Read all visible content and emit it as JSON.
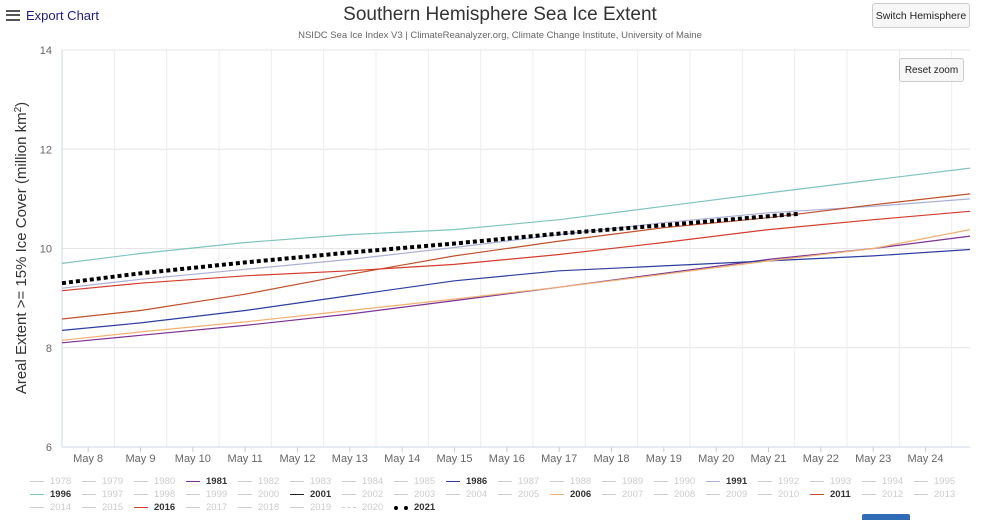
{
  "header": {
    "export_label": "Export Chart",
    "title": "Southern Hemisphere Sea Ice Extent",
    "subtitle": "NSIDC Sea Ice Index V3 | ClimateReanalyzer.org, Climate Change Institute, University of Maine",
    "switch_label": "Switch Hemisphere",
    "reset_zoom_label": "Reset zoom"
  },
  "chart_data": {
    "type": "line",
    "title": "Southern Hemisphere Sea Ice Extent",
    "subtitle": "NSIDC Sea Ice Index V3 | ClimateReanalyzer.org, Climate Change Institute, University of Maine",
    "ylabel": "Areal Extent >= 15% Ice Cover (million km²)",
    "ylabel_parts": {
      "main": "Areal Extent >= 15% Ice Cover (million km",
      "sup": "2",
      "end": ")"
    },
    "xlabel": "",
    "ylim": [
      6,
      14
    ],
    "yticks": [
      6,
      8,
      10,
      12,
      14
    ],
    "xlim": [
      7.5,
      24.85
    ],
    "x_ticks": [
      8,
      9,
      10,
      11,
      12,
      13,
      14,
      15,
      16,
      17,
      18,
      19,
      20,
      21,
      22,
      23,
      24
    ],
    "x_tick_labels": [
      "May 8",
      "May 9",
      "May 10",
      "May 11",
      "May 12",
      "May 13",
      "May 14",
      "May 15",
      "May 16",
      "May 17",
      "May 18",
      "May 19",
      "May 20",
      "May 21",
      "May 22",
      "May 23",
      "May 24"
    ],
    "grid": true,
    "legend_position": "bottom",
    "series": [
      {
        "name": "1981",
        "color": "#7b3294",
        "style": "solid",
        "x": [
          7.5,
          9,
          11,
          13,
          15,
          17,
          19,
          21,
          23,
          24.85
        ],
        "y": [
          8.1,
          8.25,
          8.45,
          8.68,
          8.95,
          9.22,
          9.5,
          9.78,
          10.0,
          10.25
        ]
      },
      {
        "name": "1986",
        "color": "#2c3e9e",
        "style": "solid",
        "x": [
          7.5,
          9,
          11,
          13,
          15,
          17,
          19,
          21,
          23,
          24.85
        ],
        "y": [
          8.35,
          8.5,
          8.75,
          9.05,
          9.35,
          9.55,
          9.65,
          9.75,
          9.85,
          9.98
        ]
      },
      {
        "name": "1991",
        "color": "#a9b0d6",
        "style": "solid",
        "x": [
          7.5,
          9,
          11,
          13,
          15,
          17,
          19,
          21,
          23,
          24.85
        ],
        "y": [
          9.2,
          9.38,
          9.58,
          9.78,
          10.02,
          10.28,
          10.52,
          10.72,
          10.85,
          11.0
        ]
      },
      {
        "name": "1996",
        "color": "#7ec4c0",
        "style": "solid",
        "x": [
          7.5,
          9,
          11,
          13,
          15,
          17,
          19,
          21,
          23,
          24.85
        ],
        "y": [
          9.7,
          9.9,
          10.12,
          10.28,
          10.38,
          10.58,
          10.85,
          11.12,
          11.38,
          11.62
        ]
      },
      {
        "name": "2001",
        "color": "#222222",
        "style": "solid",
        "x": [],
        "y": []
      },
      {
        "name": "2006",
        "color": "#f0b070",
        "style": "solid",
        "x": [
          7.5,
          9,
          11,
          13,
          15,
          17,
          19,
          21,
          23,
          24.85
        ],
        "y": [
          8.15,
          8.32,
          8.52,
          8.75,
          8.98,
          9.22,
          9.48,
          9.75,
          10.0,
          10.38
        ]
      },
      {
        "name": "2011",
        "color": "#c0502a",
        "style": "solid",
        "x": [
          7.5,
          9,
          11,
          13,
          15,
          17,
          19,
          21,
          23,
          24.85
        ],
        "y": [
          8.58,
          8.75,
          9.08,
          9.48,
          9.85,
          10.15,
          10.42,
          10.62,
          10.88,
          11.1
        ]
      },
      {
        "name": "2016",
        "color": "#d43c2c",
        "style": "solid",
        "x": [
          7.5,
          9,
          11,
          13,
          15,
          17,
          19,
          21,
          23,
          24.85
        ],
        "y": [
          9.15,
          9.3,
          9.45,
          9.55,
          9.68,
          9.88,
          10.12,
          10.38,
          10.58,
          10.75
        ]
      },
      {
        "name": "2021",
        "color": "#000000",
        "style": "dotted",
        "x": [
          7.5,
          9,
          11,
          13,
          15,
          17,
          19,
          20,
          21,
          21.6
        ],
        "y": [
          9.3,
          9.5,
          9.72,
          9.92,
          10.1,
          10.3,
          10.47,
          10.56,
          10.65,
          10.7
        ]
      }
    ]
  },
  "legend": {
    "items": [
      {
        "label": "1978",
        "visible": false,
        "color": "#cccccc"
      },
      {
        "label": "1979",
        "visible": false,
        "color": "#cccccc"
      },
      {
        "label": "1980",
        "visible": false,
        "color": "#cccccc"
      },
      {
        "label": "1981",
        "visible": true,
        "color": "#7b3294"
      },
      {
        "label": "1982",
        "visible": false,
        "color": "#cccccc"
      },
      {
        "label": "1983",
        "visible": false,
        "color": "#cccccc"
      },
      {
        "label": "1984",
        "visible": false,
        "color": "#cccccc"
      },
      {
        "label": "1985",
        "visible": false,
        "color": "#cccccc"
      },
      {
        "label": "1986",
        "visible": true,
        "color": "#2c3e9e"
      },
      {
        "label": "1987",
        "visible": false,
        "color": "#cccccc"
      },
      {
        "label": "1988",
        "visible": false,
        "color": "#cccccc"
      },
      {
        "label": "1989",
        "visible": false,
        "color": "#cccccc"
      },
      {
        "label": "1990",
        "visible": false,
        "color": "#cccccc"
      },
      {
        "label": "1991",
        "visible": true,
        "color": "#a9b0d6"
      },
      {
        "label": "1992",
        "visible": false,
        "color": "#cccccc"
      },
      {
        "label": "1993",
        "visible": false,
        "color": "#cccccc"
      },
      {
        "label": "1994",
        "visible": false,
        "color": "#cccccc"
      },
      {
        "label": "1995",
        "visible": false,
        "color": "#cccccc"
      },
      {
        "label": "1996",
        "visible": true,
        "color": "#7ec4c0"
      },
      {
        "label": "1997",
        "visible": false,
        "color": "#cccccc"
      },
      {
        "label": "1998",
        "visible": false,
        "color": "#cccccc"
      },
      {
        "label": "1999",
        "visible": false,
        "color": "#cccccc"
      },
      {
        "label": "2000",
        "visible": false,
        "color": "#cccccc"
      },
      {
        "label": "2001",
        "visible": true,
        "color": "#222222"
      },
      {
        "label": "2002",
        "visible": false,
        "color": "#cccccc"
      },
      {
        "label": "2003",
        "visible": false,
        "color": "#cccccc"
      },
      {
        "label": "2004",
        "visible": false,
        "color": "#cccccc"
      },
      {
        "label": "2005",
        "visible": false,
        "color": "#cccccc"
      },
      {
        "label": "2006",
        "visible": true,
        "color": "#f0b070"
      },
      {
        "label": "2007",
        "visible": false,
        "color": "#cccccc"
      },
      {
        "label": "2008",
        "visible": false,
        "color": "#cccccc"
      },
      {
        "label": "2009",
        "visible": false,
        "color": "#cccccc"
      },
      {
        "label": "2010",
        "visible": false,
        "color": "#cccccc"
      },
      {
        "label": "2011",
        "visible": true,
        "color": "#c0502a"
      },
      {
        "label": "2012",
        "visible": false,
        "color": "#cccccc"
      },
      {
        "label": "2013",
        "visible": false,
        "color": "#cccccc"
      },
      {
        "label": "2014",
        "visible": false,
        "color": "#cccccc"
      },
      {
        "label": "2015",
        "visible": false,
        "color": "#cccccc"
      },
      {
        "label": "2016",
        "visible": true,
        "color": "#d43c2c"
      },
      {
        "label": "2017",
        "visible": false,
        "color": "#cccccc"
      },
      {
        "label": "2018",
        "visible": false,
        "color": "#cccccc"
      },
      {
        "label": "2019",
        "visible": false,
        "color": "#cccccc"
      },
      {
        "label": "2020",
        "visible": false,
        "color": "#cccccc",
        "dashed": true
      },
      {
        "label": "2021",
        "visible": true,
        "color": "#000000",
        "dotted": true
      }
    ]
  }
}
